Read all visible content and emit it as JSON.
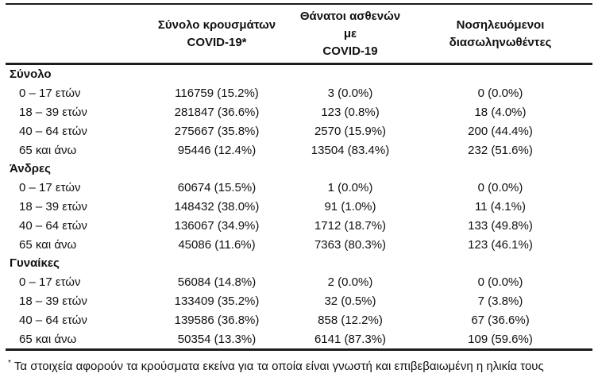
{
  "table": {
    "column_headers": [
      {
        "line1": "Σύνολο κρουσμάτων",
        "line2": "COVID-19*"
      },
      {
        "line1": "Θάνατοι ασθενών με",
        "line2": "COVID-19"
      },
      {
        "line1": "Νοσηλευόμενοι",
        "line2": "διασωληνωθέντες"
      }
    ],
    "sections": [
      {
        "label": "Σύνολο",
        "rows": [
          {
            "label": "0 – 17 ετών",
            "cases": "116759 (15.2%)",
            "deaths": "3 (0.0%)",
            "intubated": "0 (0.0%)"
          },
          {
            "label": "18 – 39 ετών",
            "cases": "281847 (36.6%)",
            "deaths": "123 (0.8%)",
            "intubated": "18 (4.0%)"
          },
          {
            "label": "40 – 64 ετών",
            "cases": "275667 (35.8%)",
            "deaths": "2570 (15.9%)",
            "intubated": "200 (44.4%)"
          },
          {
            "label": "65 και άνω",
            "cases": "95446 (12.4%)",
            "deaths": "13504 (83.4%)",
            "intubated": "232 (51.6%)"
          }
        ]
      },
      {
        "label": "Άνδρες",
        "rows": [
          {
            "label": "0 – 17 ετών",
            "cases": "60674 (15.5%)",
            "deaths": "1 (0.0%)",
            "intubated": "0 (0.0%)"
          },
          {
            "label": "18 – 39 ετών",
            "cases": "148432 (38.0%)",
            "deaths": "91 (1.0%)",
            "intubated": "11 (4.1%)"
          },
          {
            "label": "40 – 64 ετών",
            "cases": "136067 (34.9%)",
            "deaths": "1712 (18.7%)",
            "intubated": "133 (49.8%)"
          },
          {
            "label": "65 και άνω",
            "cases": "45086 (11.6%)",
            "deaths": "7363 (80.3%)",
            "intubated": "123 (46.1%)"
          }
        ]
      },
      {
        "label": "Γυναίκες",
        "rows": [
          {
            "label": "0 – 17 ετών",
            "cases": "56084 (14.8%)",
            "deaths": "2 (0.0%)",
            "intubated": "0 (0.0%)"
          },
          {
            "label": "18 – 39 ετών",
            "cases": "133409 (35.2%)",
            "deaths": "32 (0.5%)",
            "intubated": "7 (3.8%)"
          },
          {
            "label": "40 – 64 ετών",
            "cases": "139586 (36.8%)",
            "deaths": "858 (12.2%)",
            "intubated": "67 (36.6%)"
          },
          {
            "label": "65 και άνω",
            "cases": "50354 (13.3%)",
            "deaths": "6141 (87.3%)",
            "intubated": "109 (59.6%)"
          }
        ]
      }
    ],
    "footnote_marker": "*",
    "footnote": "Τα στοιχεία αφορούν τα κρούσματα εκείνα για τα οποία είναι γνωστή και επιβεβαιωμένη η ηλικία τους"
  },
  "colors": {
    "text": "#111111",
    "rule": "#1c1c1c",
    "background": "#ffffff"
  }
}
